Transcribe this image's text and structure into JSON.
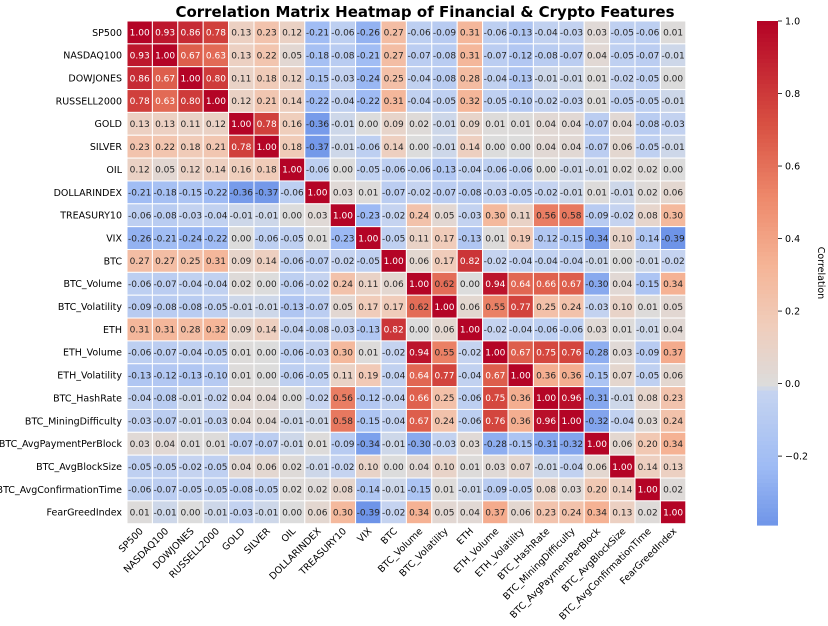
{
  "chart_data": {
    "type": "heatmap",
    "title": "Correlation Matrix Heatmap of Financial & Crypto Features",
    "labels": [
      "SP500",
      "NASDAQ100",
      "DOWJONES",
      "RUSSELL2000",
      "GOLD",
      "SILVER",
      "OIL",
      "DOLLARINDEX",
      "TREASURY10",
      "VIX",
      "BTC",
      "BTC_Volume",
      "BTC_Volatility",
      "ETH",
      "ETH_Volume",
      "ETH_Volatility",
      "BTC_HashRate",
      "BTC_MiningDifficulty",
      "BTC_AvgPaymentPerBlock",
      "BTC_AvgBlockSize",
      "BTC_AvgConfirmationTime",
      "FearGreedIndex"
    ],
    "values": [
      [
        1.0,
        0.93,
        0.86,
        0.78,
        0.13,
        0.23,
        0.12,
        -0.21,
        -0.06,
        -0.26,
        0.27,
        -0.06,
        -0.09,
        0.31,
        -0.06,
        -0.13,
        -0.04,
        -0.03,
        0.03,
        -0.05,
        -0.06,
        0.01
      ],
      [
        0.93,
        1.0,
        0.67,
        0.63,
        0.13,
        0.22,
        0.05,
        -0.18,
        -0.08,
        -0.21,
        0.27,
        -0.07,
        -0.08,
        0.31,
        -0.07,
        -0.12,
        -0.08,
        -0.07,
        0.04,
        -0.05,
        -0.07,
        -0.01
      ],
      [
        0.86,
        0.67,
        1.0,
        0.8,
        0.11,
        0.18,
        0.12,
        -0.15,
        -0.03,
        -0.24,
        0.25,
        -0.04,
        -0.08,
        0.28,
        -0.04,
        -0.13,
        -0.01,
        -0.01,
        0.01,
        -0.02,
        -0.05,
        0.0
      ],
      [
        0.78,
        0.63,
        0.8,
        1.0,
        0.12,
        0.21,
        0.14,
        -0.22,
        -0.04,
        -0.22,
        0.31,
        -0.04,
        -0.05,
        0.32,
        -0.05,
        -0.1,
        -0.02,
        -0.03,
        0.01,
        -0.05,
        -0.05,
        -0.01
      ],
      [
        0.13,
        0.13,
        0.11,
        0.12,
        1.0,
        0.78,
        0.16,
        -0.36,
        -0.01,
        0.0,
        0.09,
        0.02,
        -0.01,
        0.09,
        0.01,
        0.01,
        0.04,
        0.04,
        -0.07,
        0.04,
        -0.08,
        -0.03
      ],
      [
        0.23,
        0.22,
        0.18,
        0.21,
        0.78,
        1.0,
        0.18,
        -0.37,
        -0.01,
        -0.06,
        0.14,
        0.0,
        -0.01,
        0.14,
        0.0,
        0.0,
        0.04,
        0.04,
        -0.07,
        0.06,
        -0.05,
        -0.01
      ],
      [
        0.12,
        0.05,
        0.12,
        0.14,
        0.16,
        0.18,
        1.0,
        -0.06,
        -0.0,
        -0.05,
        -0.06,
        -0.06,
        -0.13,
        -0.04,
        -0.06,
        -0.06,
        0.0,
        -0.01,
        -0.01,
        0.02,
        0.02,
        -0.0
      ],
      [
        -0.21,
        -0.18,
        -0.15,
        -0.22,
        -0.36,
        -0.37,
        -0.06,
        1.0,
        0.03,
        0.01,
        -0.07,
        -0.02,
        -0.07,
        -0.08,
        -0.03,
        -0.05,
        -0.02,
        -0.01,
        0.01,
        -0.01,
        0.02,
        0.06
      ],
      [
        -0.06,
        -0.08,
        -0.03,
        -0.04,
        -0.01,
        -0.01,
        -0.0,
        0.03,
        1.0,
        -0.23,
        -0.02,
        0.24,
        0.05,
        -0.03,
        0.3,
        0.11,
        0.56,
        0.58,
        -0.09,
        -0.02,
        0.08,
        0.3
      ],
      [
        -0.26,
        -0.21,
        -0.24,
        -0.22,
        0.0,
        -0.06,
        -0.05,
        0.01,
        -0.23,
        1.0,
        -0.05,
        0.11,
        0.17,
        -0.13,
        0.01,
        0.19,
        -0.12,
        -0.15,
        -0.34,
        0.1,
        -0.14,
        -0.39
      ],
      [
        0.27,
        0.27,
        0.25,
        0.31,
        0.09,
        0.14,
        -0.06,
        -0.07,
        -0.02,
        -0.05,
        1.0,
        0.06,
        0.17,
        0.82,
        -0.02,
        -0.04,
        -0.04,
        -0.04,
        -0.01,
        0.0,
        -0.01,
        -0.02
      ],
      [
        -0.06,
        -0.07,
        -0.04,
        -0.04,
        0.02,
        0.0,
        -0.06,
        -0.02,
        0.24,
        0.11,
        0.06,
        1.0,
        0.62,
        -0.0,
        0.94,
        0.64,
        0.66,
        0.67,
        -0.3,
        0.04,
        -0.15,
        0.34
      ],
      [
        -0.09,
        -0.08,
        -0.08,
        -0.05,
        -0.01,
        -0.01,
        -0.13,
        -0.07,
        0.05,
        0.17,
        0.17,
        0.62,
        1.0,
        0.06,
        0.55,
        0.77,
        0.25,
        0.24,
        -0.03,
        0.1,
        0.01,
        0.05
      ],
      [
        0.31,
        0.31,
        0.28,
        0.32,
        0.09,
        0.14,
        -0.04,
        -0.08,
        -0.03,
        -0.13,
        0.82,
        -0.0,
        0.06,
        1.0,
        -0.02,
        -0.04,
        -0.06,
        -0.06,
        0.03,
        0.01,
        -0.01,
        0.04
      ],
      [
        -0.06,
        -0.07,
        -0.04,
        -0.05,
        0.01,
        0.0,
        -0.06,
        -0.03,
        0.3,
        0.01,
        -0.02,
        0.94,
        0.55,
        -0.02,
        1.0,
        0.67,
        0.75,
        0.76,
        -0.28,
        0.03,
        -0.09,
        0.37
      ],
      [
        -0.13,
        -0.12,
        -0.13,
        -0.1,
        0.01,
        0.0,
        -0.06,
        -0.05,
        0.11,
        0.19,
        -0.04,
        0.64,
        0.77,
        -0.04,
        0.67,
        1.0,
        0.36,
        0.36,
        -0.15,
        0.07,
        -0.05,
        0.06
      ],
      [
        -0.04,
        -0.08,
        -0.01,
        -0.02,
        0.04,
        0.04,
        0.0,
        -0.02,
        0.56,
        -0.12,
        -0.04,
        0.66,
        0.25,
        -0.06,
        0.75,
        0.36,
        1.0,
        0.96,
        -0.31,
        -0.01,
        0.08,
        0.23
      ],
      [
        -0.03,
        -0.07,
        -0.01,
        -0.03,
        0.04,
        0.04,
        -0.01,
        -0.01,
        0.58,
        -0.15,
        -0.04,
        0.67,
        0.24,
        -0.06,
        0.76,
        0.36,
        0.96,
        1.0,
        -0.32,
        -0.04,
        0.03,
        0.24
      ],
      [
        0.03,
        0.04,
        0.01,
        0.01,
        -0.07,
        -0.07,
        -0.01,
        0.01,
        -0.09,
        -0.34,
        -0.01,
        -0.3,
        -0.03,
        0.03,
        -0.28,
        -0.15,
        -0.31,
        -0.32,
        1.0,
        0.06,
        0.2,
        0.34
      ],
      [
        -0.05,
        -0.05,
        -0.02,
        -0.05,
        0.04,
        0.06,
        0.02,
        -0.01,
        -0.02,
        0.1,
        0.0,
        0.04,
        0.1,
        0.01,
        0.03,
        0.07,
        -0.01,
        -0.04,
        0.06,
        1.0,
        0.14,
        0.13
      ],
      [
        -0.06,
        -0.07,
        -0.05,
        -0.05,
        -0.08,
        -0.05,
        0.02,
        0.02,
        0.08,
        -0.14,
        -0.01,
        -0.15,
        0.01,
        -0.01,
        -0.09,
        -0.05,
        0.08,
        0.03,
        0.2,
        0.14,
        1.0,
        0.02
      ],
      [
        0.01,
        -0.01,
        0.0,
        -0.01,
        -0.03,
        -0.01,
        -0.0,
        0.06,
        0.3,
        -0.39,
        -0.02,
        0.34,
        0.05,
        0.04,
        0.37,
        0.06,
        0.23,
        0.24,
        0.34,
        0.13,
        0.02,
        1.0
      ]
    ],
    "colorbar": {
      "label": "Correlation",
      "range": [
        -0.39,
        1.0
      ],
      "ticks": [
        1.0,
        0.8,
        0.6,
        0.4,
        0.2,
        0.0,
        -0.2
      ],
      "tick_labels": [
        "1.0",
        "0.8",
        "0.6",
        "0.4",
        "0.2",
        "0.0",
        "−0.2"
      ]
    },
    "colormap": "coolwarm",
    "colors": {
      "low": "#9ebbf4",
      "mid": "#dcdcdc",
      "high": "#b40426",
      "line": "#ffffff"
    }
  }
}
